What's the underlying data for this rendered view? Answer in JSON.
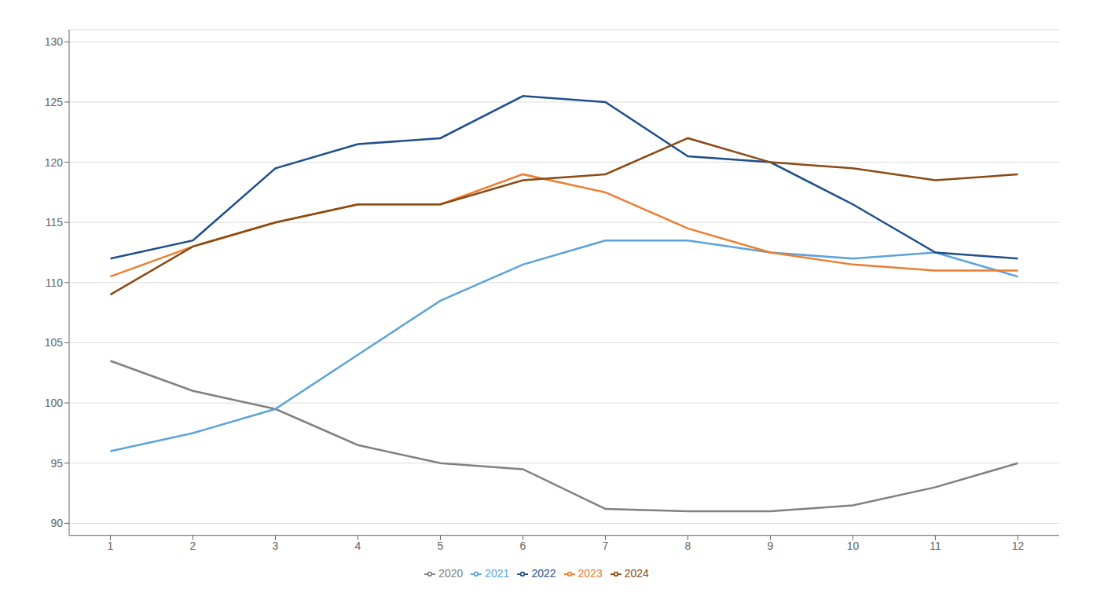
{
  "chart_data": {
    "type": "line",
    "x": [
      1,
      2,
      3,
      4,
      5,
      6,
      7,
      8,
      9,
      10,
      11,
      12
    ],
    "series": [
      {
        "name": "2020",
        "color": "#808080",
        "values": [
          103.5,
          101.0,
          99.5,
          96.5,
          95.0,
          94.5,
          91.2,
          91.0,
          91.0,
          91.5,
          93.0,
          95.0
        ]
      },
      {
        "name": "2021",
        "color": "#5BA3D9",
        "values": [
          96.0,
          97.5,
          99.5,
          104.0,
          108.5,
          111.5,
          113.5,
          113.5,
          112.5,
          112.0,
          112.5,
          110.5
        ]
      },
      {
        "name": "2022",
        "color": "#1F4E8C",
        "values": [
          112.0,
          113.5,
          119.5,
          121.5,
          122.0,
          125.5,
          125.0,
          120.5,
          120.0,
          116.5,
          112.5,
          112.0
        ]
      },
      {
        "name": "2023",
        "color": "#ED7D31",
        "values": [
          110.5,
          113.0,
          115.0,
          116.5,
          116.5,
          119.0,
          117.5,
          114.5,
          112.5,
          111.5,
          111.0,
          111.0
        ]
      },
      {
        "name": "2024",
        "color": "#8B4A14",
        "values": [
          109.0,
          113.0,
          115.0,
          116.5,
          116.5,
          118.5,
          119.0,
          122.0,
          120.0,
          119.5,
          118.5,
          119.0
        ]
      }
    ],
    "xlim": [
      0.5,
      12.5
    ],
    "ylim": [
      89,
      131
    ],
    "xticks": [
      1,
      2,
      3,
      4,
      5,
      6,
      7,
      8,
      9,
      10,
      11,
      12
    ],
    "yticks": [
      90,
      95,
      100,
      105,
      110,
      115,
      120,
      125,
      130
    ],
    "grid": "y",
    "legend": "bottom"
  }
}
